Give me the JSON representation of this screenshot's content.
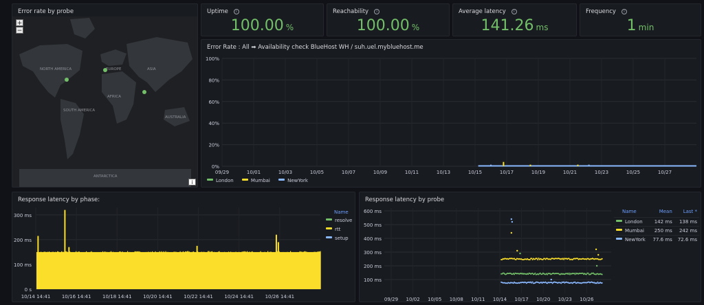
{
  "map_panel": {
    "title": "Error rate by probe",
    "zoom_in": "+",
    "zoom_out": "−",
    "info_label": "i",
    "continents": [
      "NORTH AMERICA",
      "EUROPE",
      "ASIA",
      "AFRICA",
      "SOUTH AMERICA",
      "AUSTRALIA",
      "ANTARCTICA"
    ]
  },
  "stats": [
    {
      "title": "Uptime",
      "value": "100.00",
      "unit": "%"
    },
    {
      "title": "Reachability",
      "value": "100.00",
      "unit": "%"
    },
    {
      "title": "Average latency",
      "value": "141.26",
      "unit": "ms"
    },
    {
      "title": "Frequency",
      "value": "1",
      "unit": "min"
    }
  ],
  "colors": {
    "green": "#73bf69",
    "yellow": "#fade2a",
    "blue": "#8ab8ff",
    "legend_header": "#6e9fff"
  },
  "error_panel": {
    "title": "Error Rate : All ➡ Availability check BlueHost WH / suh.uel.mybluehost.me",
    "legend": [
      {
        "name": "London",
        "color": "#73bf69"
      },
      {
        "name": "Mumbai",
        "color": "#fade2a"
      },
      {
        "name": "NewYork",
        "color": "#8ab8ff"
      }
    ]
  },
  "phase_panel": {
    "title": "Response latency by phase:",
    "legend_header": "Name",
    "legend": [
      {
        "name": "resolve",
        "color": "#73bf69"
      },
      {
        "name": "rtt",
        "color": "#fade2a"
      },
      {
        "name": "setup",
        "color": "#8ab8ff"
      }
    ]
  },
  "probe_panel": {
    "title": "Response latency by probe",
    "headers": [
      "Name",
      "Mean",
      "Last *"
    ],
    "rows": [
      {
        "name": "London",
        "mean": "142 ms",
        "last": "138 ms",
        "color": "#73bf69"
      },
      {
        "name": "Mumbai",
        "mean": "250 ms",
        "last": "242 ms",
        "color": "#fade2a"
      },
      {
        "name": "NewYork",
        "mean": "77.6 ms",
        "last": "72.6 ms",
        "color": "#8ab8ff"
      }
    ]
  },
  "chart_data": [
    {
      "type": "bar",
      "title": "Error Rate : All ➡ Availability check BlueHost WH / suh.uel.mybluehost.me",
      "x_ticks": [
        "09/29",
        "10/01",
        "10/03",
        "10/05",
        "10/07",
        "10/09",
        "10/11",
        "10/13",
        "10/15",
        "10/17",
        "10/19",
        "10/21",
        "10/23",
        "10/25",
        "10/27"
      ],
      "y_ticks": [
        "0%",
        "20%",
        "40%",
        "60%",
        "80%",
        "100%"
      ],
      "ylim": [
        0,
        100
      ],
      "x_range_days": [
        0,
        30
      ],
      "series": [
        {
          "name": "London",
          "values": []
        },
        {
          "name": "Mumbai",
          "points": [
            [
              17.8,
              4
            ],
            [
              19.5,
              1.5
            ],
            [
              22.5,
              1.5
            ]
          ]
        },
        {
          "name": "NewYork",
          "points": [
            [
              17.0,
              1.5
            ],
            [
              23.2,
              1.5
            ]
          ],
          "baseline_from_day": 16.2
        }
      ]
    },
    {
      "type": "bar",
      "title": "Response latency by phase:",
      "x_ticks": [
        "10/14 14:41",
        "10/16 14:41",
        "10/18 14:41",
        "10/20 14:41",
        "10/22 14:41",
        "10/24 14:41",
        "10/26 14:41"
      ],
      "y_ticks": [
        "0 s",
        "100 ms",
        "200 ms",
        "300 ms"
      ],
      "ylim": [
        0,
        330
      ],
      "series": [
        {
          "name": "rtt",
          "typical_ms": 150,
          "spikes": [
            [
              0.08,
              215
            ],
            [
              1.4,
              320
            ],
            [
              1.6,
              170
            ],
            [
              7.9,
              175
            ],
            [
              11.8,
              220
            ],
            [
              11.9,
              190
            ]
          ]
        }
      ]
    },
    {
      "type": "scatter",
      "title": "Response latency by probe",
      "x_ticks": [
        "09/29",
        "10/02",
        "10/05",
        "10/08",
        "10/11",
        "10/14",
        "10/17",
        "10/20",
        "10/23",
        "10/26"
      ],
      "y_ticks": [
        "100 ms",
        "200 ms",
        "300 ms",
        "400 ms",
        "500 ms",
        "600 ms"
      ],
      "ylim": [
        0,
        620
      ],
      "series": [
        {
          "name": "London",
          "mean": 142
        },
        {
          "name": "Mumbai",
          "mean": 250
        },
        {
          "name": "NewYork",
          "mean": 77.6
        }
      ]
    }
  ]
}
